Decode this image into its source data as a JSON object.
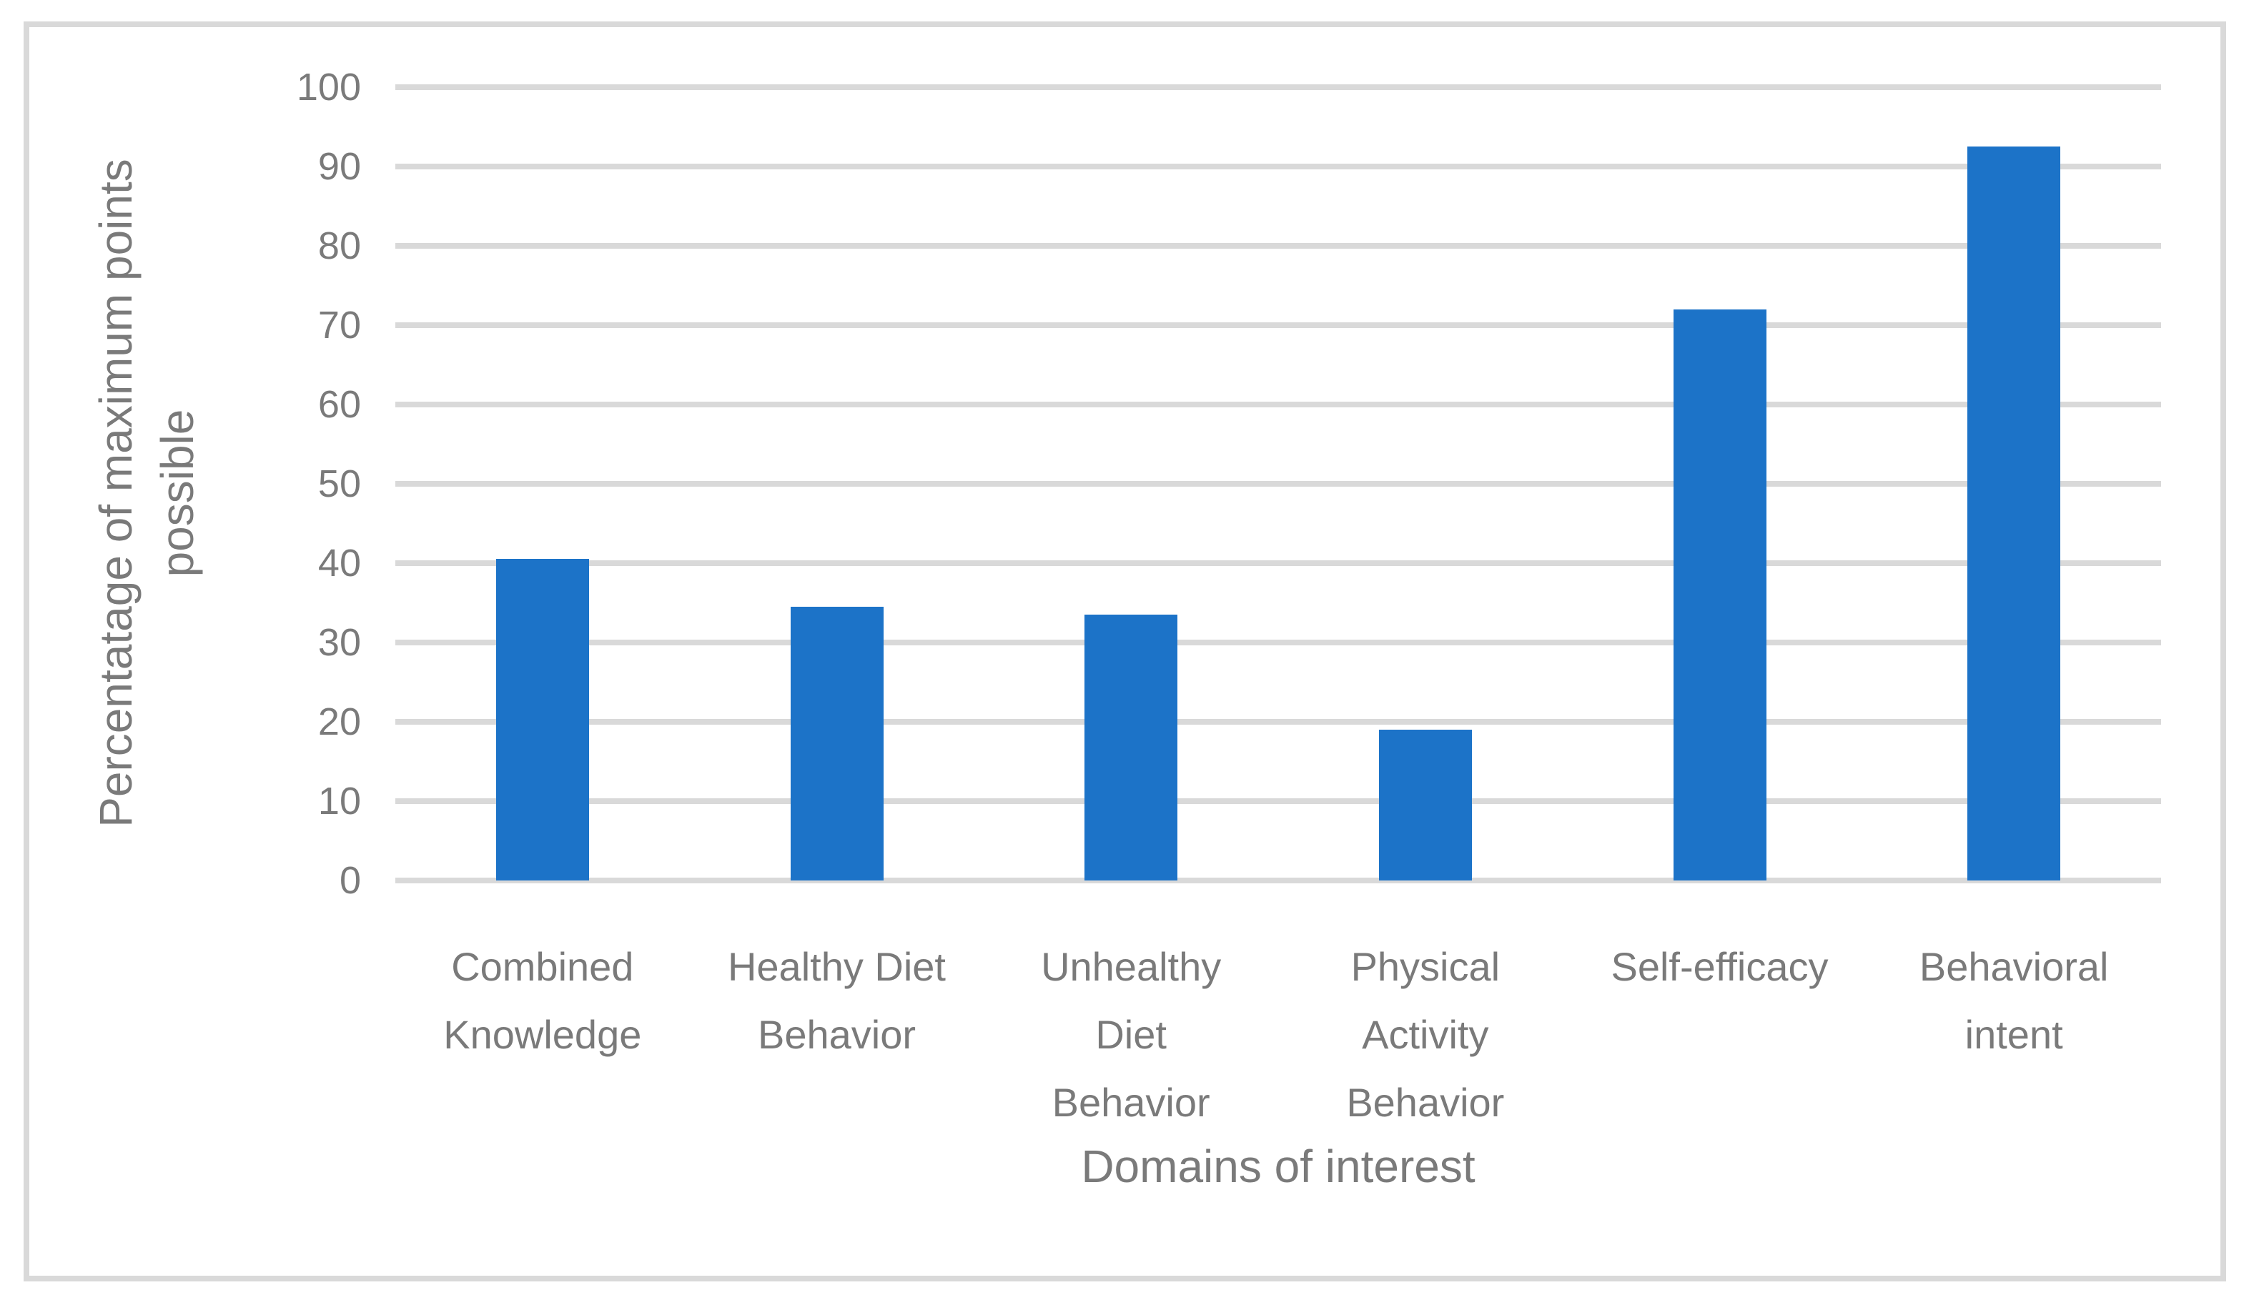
{
  "chart_data": {
    "type": "bar",
    "title": "",
    "categories": [
      "Combined Knowledge",
      "Healthy Diet Behavior",
      "Unhealthy Diet Behavior",
      "Physical Activity Behavior",
      "Self-efficacy",
      "Behavioral intent"
    ],
    "category_display": [
      "Combined\nKnowledge",
      "Healthy Diet\nBehavior",
      "Unhealthy\nDiet\nBehavior",
      "Physical\nActivity\nBehavior",
      "Self-efficacy",
      "Behavioral\nintent"
    ],
    "values": [
      40.5,
      34.5,
      33.5,
      19,
      72,
      92.5
    ],
    "xlabel": "Domains of interest",
    "ylabel": "Percentatage of maximum points possible",
    "ylabel_display": "Percentatage of maximum points\npossible",
    "ylim": [
      0,
      100
    ],
    "yticks": [
      0,
      10,
      20,
      30,
      40,
      50,
      60,
      70,
      80,
      90,
      100
    ],
    "grid": true,
    "legend_position": "none",
    "colors": {
      "bar": "#1C73C8",
      "gridline": "#D9D9D9",
      "text": "#7A7A7A",
      "frame": "#D9D9D9",
      "background": "#FFFFFF"
    }
  }
}
